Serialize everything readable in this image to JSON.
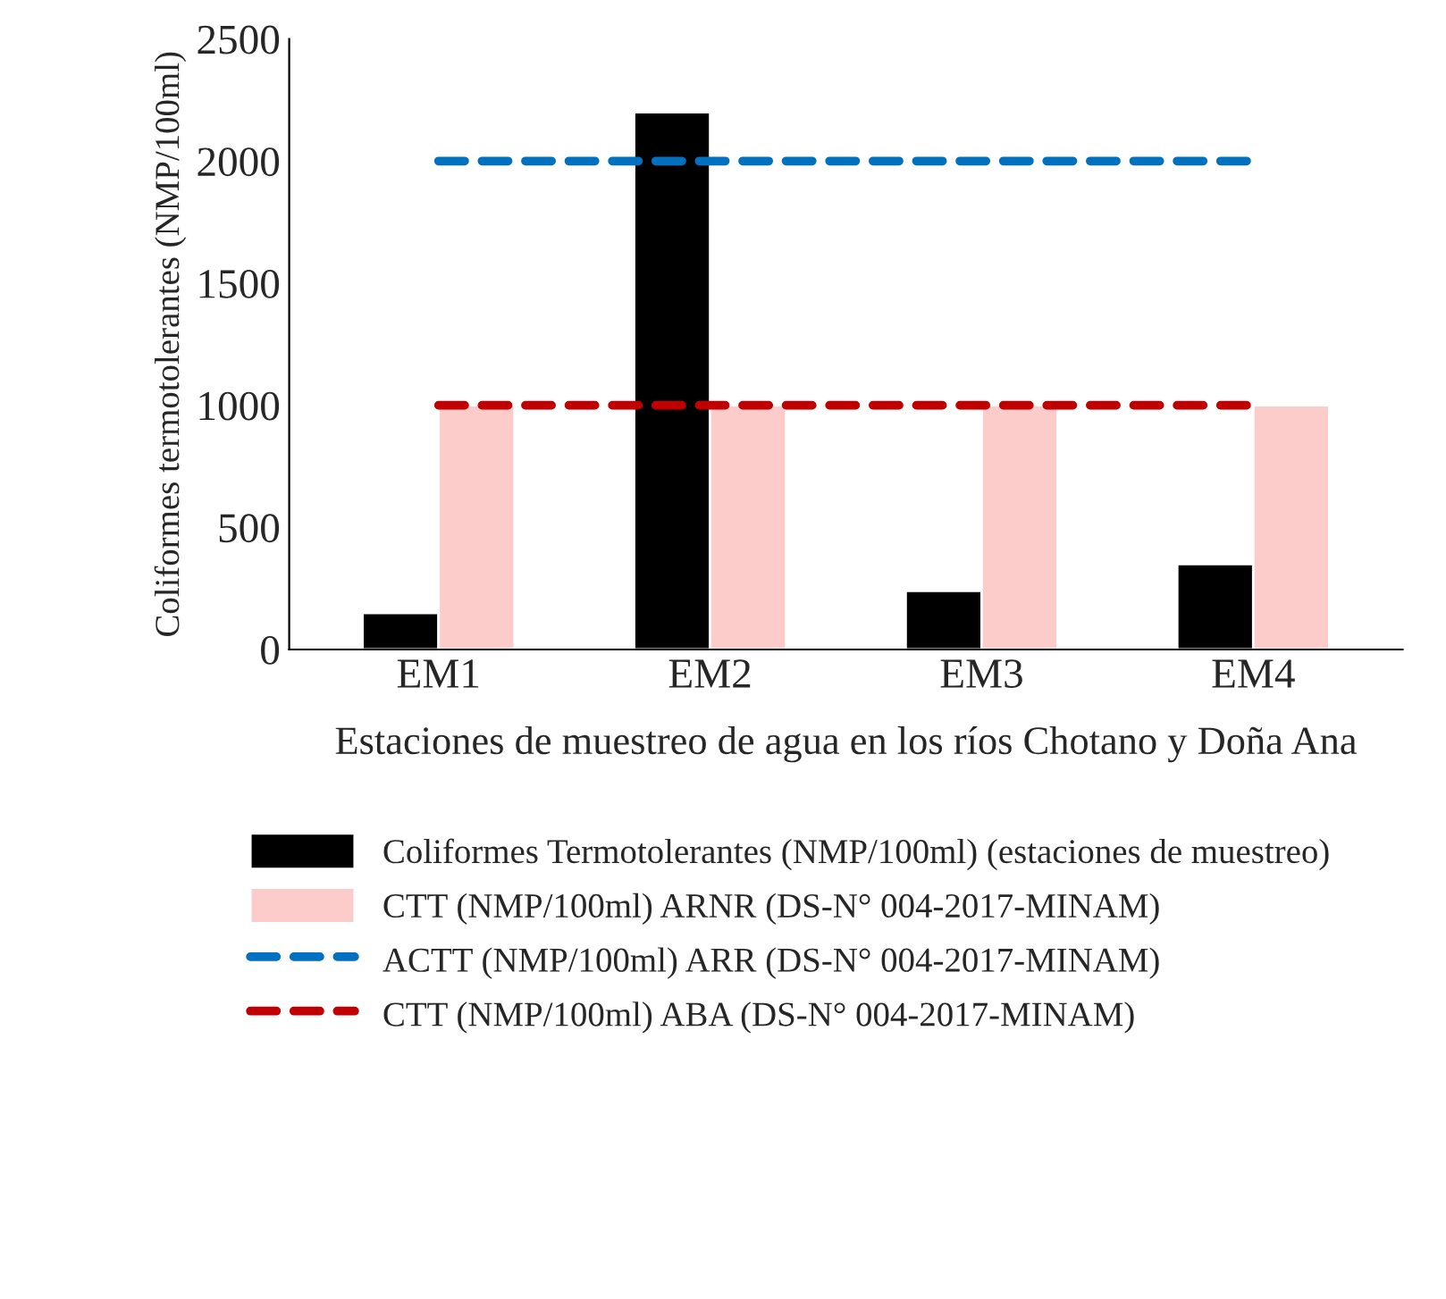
{
  "chart_data": {
    "type": "bar",
    "xlabel": "Estaciones de muestreo de agua en los ríos Chotano y Doña Ana",
    "ylabel": "Coliformes termotolerantes (NMP/100ml)",
    "categories": [
      "EM1",
      "EM2",
      "EM3",
      "EM4"
    ],
    "series": [
      {
        "name": "Coliformes Termotolerantes (NMP/100ml) (estaciones de muestreo)",
        "color": "#000000",
        "values": [
          150,
          2200,
          240,
          350
        ]
      },
      {
        "name": "CTT (NMP/100ml) ARNR (DS-N° 004-2017-MINAM)",
        "color": "#fccccb",
        "values": [
          1000,
          1000,
          1000,
          1000
        ]
      },
      {
        "name": "ACTT (NMP/100ml) ARR (DS-N° 004-2017-MINAM)",
        "type": "line",
        "line_style": "dashed",
        "color": "#0070c0",
        "values": [
          2000,
          2000,
          2000,
          2000
        ]
      },
      {
        "name": "CTT (NMP/100ml) ABA (DS-N° 004-2017-MINAM)",
        "type": "line",
        "line_style": "dashed",
        "color": "#c00000",
        "values": [
          1000,
          1000,
          1000,
          1000
        ]
      }
    ],
    "ylim": [
      0,
      2500
    ],
    "yticks": [
      0,
      500,
      1000,
      1500,
      2000,
      2500
    ],
    "grid": false,
    "legend": "bottom",
    "marker": "none"
  }
}
